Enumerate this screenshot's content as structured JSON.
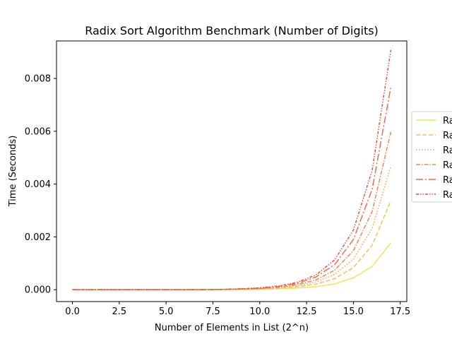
{
  "chart_data": {
    "type": "line",
    "title": "Radix Sort Algorithm Benchmark (Number of Digits)",
    "xlabel": "Number of Elements in List (2^n)",
    "ylabel": "Time (Seconds)",
    "xlim": [
      -0.85,
      17.85
    ],
    "ylim": [
      -0.00045,
      0.00942
    ],
    "xticks": [
      "0.0",
      "2.5",
      "5.0",
      "7.5",
      "10.0",
      "12.5",
      "15.0",
      "17.5"
    ],
    "xtick_values": [
      0,
      2.5,
      5,
      7.5,
      10,
      12.5,
      15,
      17.5
    ],
    "yticks": [
      "0.000",
      "0.002",
      "0.004",
      "0.006",
      "0.008"
    ],
    "ytick_values": [
      0,
      0.002,
      0.004,
      0.006,
      0.008
    ],
    "grid": false,
    "legend_position": "right-outside",
    "x": [
      0,
      1,
      2,
      3,
      4,
      5,
      6,
      7,
      8,
      9,
      10,
      11,
      12,
      13,
      14,
      15,
      16,
      17
    ],
    "series": [
      {
        "name": "Ra",
        "color": "#f5e35a",
        "dash": "solid",
        "values": [
          0,
          0,
          0,
          0,
          0,
          0,
          0,
          1e-06,
          3e-06,
          7e-06,
          1.4e-05,
          3e-05,
          6e-05,
          0.00011,
          0.00022,
          0.00045,
          0.00088,
          0.00177
        ]
      },
      {
        "name": "Ra",
        "color": "#f7bf5c",
        "dash": "dashed",
        "values": [
          0,
          0,
          0,
          0,
          0,
          0,
          0,
          2e-06,
          5e-06,
          1.3e-05,
          2.6e-05,
          5.5e-05,
          0.00011,
          0.00021,
          0.00042,
          0.00084,
          0.00168,
          0.00337
        ]
      },
      {
        "name": "Ra",
        "color": "#f5a04e",
        "dash": "dotted",
        "values": [
          0,
          0,
          0,
          0,
          0,
          0,
          0,
          3e-06,
          7e-06,
          1.8e-05,
          3.6e-05,
          7.5e-05,
          0.00015,
          0.00029,
          0.00058,
          0.00116,
          0.00232,
          0.00468
        ]
      },
      {
        "name": "Ra",
        "color": "#f2874d",
        "dash": "dashdot",
        "values": [
          0,
          0,
          0,
          0,
          0,
          0,
          0,
          4e-06,
          9e-06,
          2.3e-05,
          4.6e-05,
          9.5e-05,
          0.00019,
          0.00037,
          0.00074,
          0.00148,
          0.00296,
          0.00598
        ]
      },
      {
        "name": "Ra",
        "color": "#ee6c4b",
        "dash": "longdashdot",
        "values": [
          0,
          0,
          0,
          0,
          0,
          0,
          0,
          5e-06,
          1.2e-05,
          3e-05,
          6e-05,
          0.00012,
          0.00024,
          0.00048,
          0.00095,
          0.0019,
          0.0038,
          0.00768
        ]
      },
      {
        "name": "Ra",
        "color": "#e9503f",
        "dash": "dashdotdot",
        "values": [
          0,
          0,
          0,
          0,
          0,
          0,
          0,
          6e-06,
          1.4e-05,
          3.5e-05,
          7e-05,
          0.00014,
          0.00028,
          0.00056,
          0.00113,
          0.00226,
          0.00452,
          0.00908
        ]
      }
    ]
  }
}
